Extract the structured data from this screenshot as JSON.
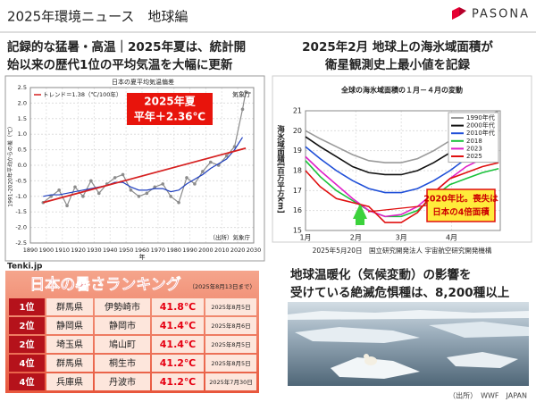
{
  "header": {
    "title": "2025年環境ニュース　地球編",
    "logo": "PASONA"
  },
  "left_panel": {
    "title": [
      "記録的な猛暑・高温｜2025年夏は、統計開",
      "始以来の歴代1位の平均気温を大幅に更新"
    ],
    "credit": "Tenki.jp",
    "chart_data": {
      "type": "line",
      "title": "日本の夏平均気温偏差",
      "y_label": "1991-2020年平均からの差（℃）",
      "x_label": "年",
      "agency": "気象庁",
      "source": "（出所）気象庁",
      "annotation": [
        "2025年夏",
        "平年＋2.36℃"
      ],
      "x": [
        1898,
        1903,
        1908,
        1913,
        1918,
        1923,
        1928,
        1933,
        1938,
        1943,
        1948,
        1953,
        1958,
        1963,
        1968,
        1973,
        1978,
        1983,
        1988,
        1993,
        1998,
        2003,
        2008,
        2013,
        2018,
        2023,
        2025
      ],
      "series": [
        {
          "color": "#8c8c8c",
          "markers": true,
          "values": [
            -1.2,
            -1.0,
            -0.8,
            -1.3,
            -0.7,
            -1.0,
            -0.5,
            -0.9,
            -0.6,
            -0.4,
            -0.3,
            -0.8,
            -1.0,
            -0.9,
            -0.7,
            -0.6,
            -1.0,
            -1.2,
            -0.4,
            -0.6,
            -0.2,
            0.1,
            0.0,
            0.3,
            0.6,
            1.8,
            2.36
          ]
        },
        {
          "color": "#1f3fbf",
          "markers": false,
          "values": [
            -1.0,
            -0.95,
            -0.95,
            -0.9,
            -0.85,
            -0.8,
            -0.75,
            -0.7,
            -0.65,
            -0.55,
            -0.55,
            -0.7,
            -0.8,
            -0.8,
            -0.75,
            -0.75,
            -0.85,
            -0.8,
            -0.6,
            -0.45,
            -0.3,
            -0.1,
            0.05,
            0.2,
            0.5,
            0.9,
            null
          ]
        }
      ],
      "trend": {
        "label": "トレンド＝1.38（℃/100年）",
        "color": "#d62020",
        "x": [
          1898,
          2025
        ],
        "values": [
          -1.2,
          0.55
        ]
      },
      "xlim": [
        1890,
        2030
      ],
      "xticks": [
        1890,
        1900,
        1910,
        1920,
        1930,
        1940,
        1950,
        1960,
        1970,
        1980,
        1990,
        2000,
        2010,
        2020,
        2030
      ],
      "ylim": [
        -2.5,
        2.5
      ],
      "yticks": [
        {
          "value": -2.5,
          "label": "-2.5"
        },
        {
          "value": -2,
          "label": "-2.0"
        },
        {
          "value": -1.5,
          "label": "-1.5"
        },
        {
          "value": -1,
          "label": "-1.0"
        },
        {
          "value": -0.5,
          "label": "-0.5"
        },
        {
          "value": 0,
          "label": "0.0"
        },
        {
          "value": 0.5,
          "label": "0.5"
        },
        {
          "value": 1,
          "label": "1.0"
        },
        {
          "value": 1.5,
          "label": "1.5"
        },
        {
          "value": 2,
          "label": "2.0"
        },
        {
          "value": 2.5,
          "label": "2.5"
        }
      ],
      "grid": true
    }
  },
  "right_panel": {
    "title": [
      "2025年2月 地球上の海氷域面積が",
      "衛星観測史上最小値を記録"
    ],
    "chart_data": {
      "type": "line",
      "title": "全球の海氷域面積の１月－４月の変動",
      "y_label": "海氷域面積[百万平方km]",
      "annotation": [
        "2020年比。喪失は",
        "日本の4倍面積"
      ],
      "source": "2025年5月20日　国立研究開発法人 宇宙航空研究開発機構",
      "x": [
        1,
        10,
        20,
        30,
        40,
        50,
        60,
        70,
        80,
        90,
        100,
        110,
        120
      ],
      "series": [
        {
          "name": "1990年代",
          "color": "#9a9a9a",
          "values": [
            20.0,
            19.6,
            19.2,
            18.8,
            18.5,
            18.4,
            18.4,
            18.6,
            19.0,
            19.5,
            20.1,
            20.6,
            21.0
          ]
        },
        {
          "name": "2000年代",
          "color": "#111111",
          "values": [
            19.7,
            19.2,
            18.7,
            18.2,
            17.9,
            17.8,
            17.8,
            18.0,
            18.4,
            18.9,
            19.5,
            20.0,
            20.5
          ]
        },
        {
          "name": "2010年代",
          "color": "#1f4fd8",
          "values": [
            19.2,
            18.6,
            18.0,
            17.5,
            17.1,
            16.9,
            16.9,
            17.1,
            17.5,
            18.0,
            18.6,
            19.1,
            19.6
          ]
        },
        {
          "name": "2018",
          "color": "#19c23a",
          "values": [
            18.5,
            17.7,
            17.0,
            16.5,
            16.0,
            15.7,
            15.7,
            16.0,
            16.7,
            17.3,
            17.6,
            17.9,
            18.1
          ]
        },
        {
          "name": "2023",
          "color": "#e020c8",
          "values": [
            18.7,
            18.0,
            17.3,
            16.6,
            16.0,
            15.7,
            15.8,
            16.2,
            16.9,
            17.6,
            18.2,
            18.6,
            19.0
          ]
        },
        {
          "name": "2025",
          "color": "#e01010",
          "values": [
            18.0,
            17.2,
            16.6,
            16.4,
            16.2,
            15.4,
            15.4,
            15.9,
            16.9,
            17.6,
            17.9,
            18.2,
            18.4
          ]
        }
      ],
      "legend": "top-right",
      "xlim": [
        1,
        121
      ],
      "xticks": [
        {
          "value": 1,
          "label": "1月"
        },
        {
          "value": 32,
          "label": "2月"
        },
        {
          "value": 60,
          "label": "3月"
        },
        {
          "value": 91,
          "label": "4月"
        }
      ],
      "ylim": [
        15,
        21
      ],
      "yticks": [
        15,
        16,
        17,
        18,
        19,
        20,
        21
      ],
      "grid": true
    }
  },
  "ranking": {
    "title": "日本の暑さランキング",
    "note": "（2025年8月13日まで）",
    "rows": [
      [
        "1位",
        "群馬県",
        "伊勢崎市",
        "41.8℃",
        "2025年8月5日"
      ],
      [
        "2位",
        "静岡県",
        "静岡市",
        "41.4℃",
        "2025年8月6日"
      ],
      [
        "2位",
        "埼玉県",
        "鳩山町",
        "41.4℃",
        "2025年8月5日"
      ],
      [
        "4位",
        "群馬県",
        "桐生市",
        "41.2℃",
        "2025年8月5日"
      ],
      [
        "4位",
        "兵庫県",
        "丹波市",
        "41.2℃",
        "2025年7月30日"
      ]
    ]
  },
  "species": {
    "title": [
      "地球温暖化（気候変動）の影響を",
      "受けている絶滅危惧種は、8,200種以上"
    ],
    "source": "（出所）　WWF　JAPAN"
  }
}
